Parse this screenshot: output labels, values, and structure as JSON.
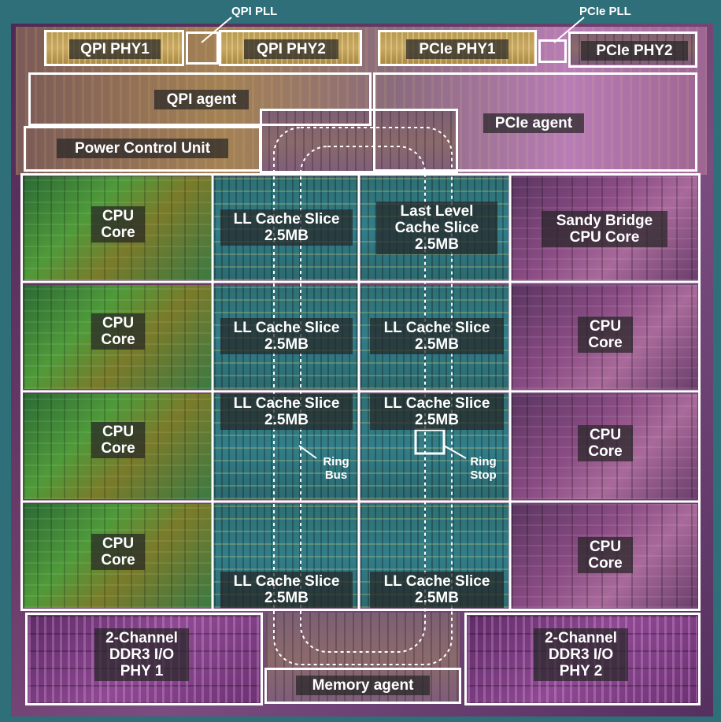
{
  "annotations": {
    "qpi_pll": "QPI PLL",
    "pcie_pll": "PCIe PLL",
    "ring_bus": "Ring\nBus",
    "ring_stop": "Ring\nStop"
  },
  "top": {
    "qpi_phy1": "QPI PHY1",
    "qpi_phy2": "QPI PHY2",
    "pcie_phy1": "PCIe PHY1",
    "pcie_phy2": "PCIe PHY2",
    "qpi_agent": "QPI agent",
    "pcie_agent": "PCIe agent",
    "power_control_unit": "Power Control Unit"
  },
  "rows": [
    {
      "left_core": "CPU\nCore",
      "cache_left": "LL Cache Slice\n2.5MB",
      "cache_right": "Last Level\nCache Slice\n2.5MB",
      "right_core": "Sandy Bridge\nCPU Core"
    },
    {
      "left_core": "CPU\nCore",
      "cache_left": "LL Cache Slice\n2.5MB",
      "cache_right": "LL Cache Slice\n2.5MB",
      "right_core": "CPU\nCore"
    },
    {
      "left_core": "CPU\nCore",
      "cache_left": "LL Cache Slice\n2.5MB",
      "cache_right": "LL Cache Slice\n2.5MB",
      "right_core": "CPU\nCore"
    },
    {
      "left_core": "CPU\nCore",
      "cache_left": "LL Cache Slice\n2.5MB",
      "cache_right": "LL Cache Slice\n2.5MB",
      "right_core": "CPU\nCore"
    }
  ],
  "bottom": {
    "ddr_phy1": "2-Channel\nDDR3 I/O\nPHY 1",
    "ddr_phy2": "2-Channel\nDDR3 I/O\nPHY 2",
    "memory_agent": "Memory agent"
  }
}
